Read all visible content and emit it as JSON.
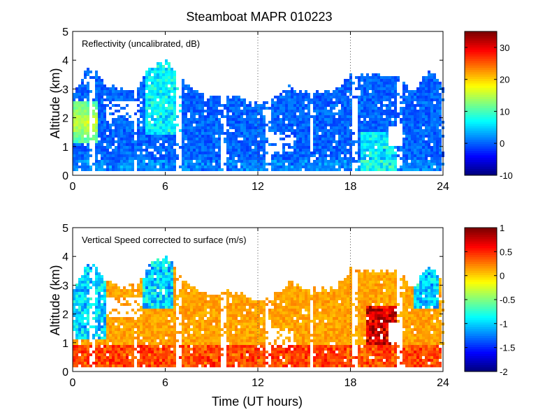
{
  "chart_data": {
    "type": "heatmap",
    "title": "Steamboat MAPR 010223",
    "xlabel": "Time (UT hours)",
    "xlim": [
      0,
      24
    ],
    "xticks": [
      0,
      6,
      12,
      18,
      24
    ],
    "grid_x": [
      12,
      18
    ],
    "panels": [
      {
        "annotation": "Reflectivity (uncalibrated, dB)",
        "ylabel": "Altitude (km)",
        "ylim": [
          0,
          5
        ],
        "yticks": [
          0,
          1,
          2,
          3,
          4,
          5
        ],
        "colorbar": {
          "min": -10,
          "max": 35,
          "ticks": [
            -10,
            0,
            10,
            20,
            30
          ]
        },
        "field": "reflectivity"
      },
      {
        "annotation": "Vertical Speed corrected to surface (m/s)",
        "ylabel": "Altitude (km)",
        "ylim": [
          0,
          5
        ],
        "yticks": [
          0,
          1,
          2,
          3,
          4,
          5
        ],
        "colorbar": {
          "min": -2,
          "max": 1,
          "ticks": [
            1,
            0.5,
            0,
            -0.5,
            -1,
            -1.5,
            -2
          ]
        },
        "field": "vertical_speed"
      }
    ],
    "echo_top_km": [
      [
        0,
        3.0
      ],
      [
        1,
        4.0
      ],
      [
        2,
        3.3
      ],
      [
        3,
        3.1
      ],
      [
        4,
        3.1
      ],
      [
        5,
        3.9
      ],
      [
        6,
        4.1
      ],
      [
        7,
        3.4
      ],
      [
        8,
        3.0
      ],
      [
        9,
        2.8
      ],
      [
        10,
        2.9
      ],
      [
        11,
        2.8
      ],
      [
        12,
        2.6
      ],
      [
        13,
        2.8
      ],
      [
        14,
        3.2
      ],
      [
        15,
        3.0
      ],
      [
        16,
        3.0
      ],
      [
        17,
        3.1
      ],
      [
        18,
        3.7
      ],
      [
        19,
        3.6
      ],
      [
        20,
        3.6
      ],
      [
        21,
        3.6
      ],
      [
        22,
        3.0
      ],
      [
        23,
        3.8
      ],
      [
        24,
        3.2
      ]
    ],
    "colormap": "jet"
  }
}
